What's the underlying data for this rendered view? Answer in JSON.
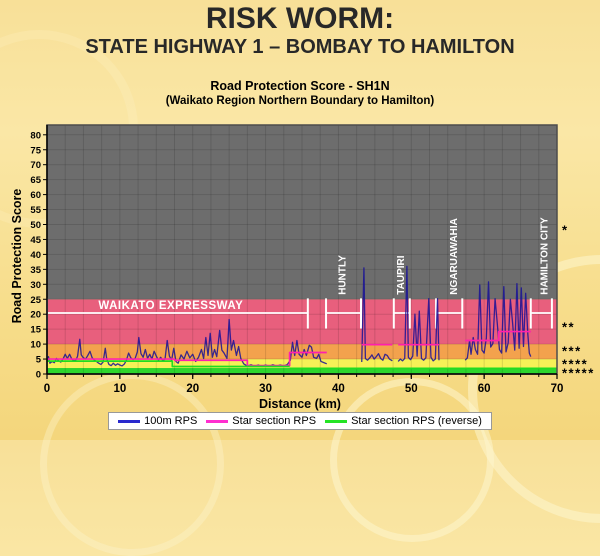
{
  "title": "RISK WORM:",
  "subtitle": "STATE HIGHWAY 1 – BOMBAY TO HAMILTON",
  "chart_title_line1": "Road Protection Score - SH1N",
  "chart_title_line2": "(Waikato Region Northern Boundary to Hamilton)",
  "xlabel": "Distance (km)",
  "ylabel": "Road Protection Score",
  "legend": {
    "items": [
      {
        "label": "100m RPS",
        "color": "#2a2ace"
      },
      {
        "label": "Star section RPS",
        "color": "#ff2fd0"
      },
      {
        "label": "Star section RPS (reverse)",
        "color": "#25e425"
      }
    ]
  },
  "colors": {
    "band_1star_grey": "#6d6d6d",
    "band_2star_pink": "#e85f7d",
    "band_3star_orange": "#f3a24d",
    "band_4star_yellow": "#f6f157",
    "band_5star_green": "#2dd62d",
    "worm_line": "rgba(24,16,150,0.85)",
    "star_section_line": "#ff1fae",
    "star_section_reverse_line": "#21dc21",
    "expressway_white": "#ffffff",
    "axis_black": "#000000"
  },
  "chart_data": {
    "type": "line",
    "xlabel": "Distance (km)",
    "ylabel": "Road Protection Score",
    "xlim": [
      0,
      70
    ],
    "ylim": [
      0,
      80
    ],
    "x_ticks": [
      0,
      10,
      20,
      30,
      40,
      50,
      60,
      70
    ],
    "y_ticks": [
      0,
      5,
      10,
      15,
      20,
      25,
      30,
      35,
      40,
      45,
      50,
      55,
      60,
      65,
      70,
      75,
      80
    ],
    "grid": {
      "x_step": 2.5,
      "y_step": 5
    },
    "bands": [
      {
        "stars": "*****",
        "from": 0,
        "to": 2,
        "color": "#2dd62d",
        "star_y": 1.2
      },
      {
        "stars": "****",
        "from": 2,
        "to": 5,
        "color": "#f6f157",
        "star_y": 4.2
      },
      {
        "stars": "***",
        "from": 5,
        "to": 10,
        "color": "#f3a24d",
        "star_y": 8.6
      },
      {
        "stars": "**",
        "from": 10,
        "to": 25,
        "color": "#e85f7d",
        "star_y": 16.5
      },
      {
        "stars": "*",
        "from": 25,
        "to": 83.3,
        "color": "#6d6d6d",
        "star_y": 49
      }
    ],
    "expressway": {
      "label": "WAIKATO EXPRESSWAY",
      "label_km": 17,
      "label_y": 21.8,
      "bar_y": 20.4,
      "cap_from_y": 15.2,
      "cap_to_y": 25.3,
      "segments": [
        [
          0,
          35.8
        ],
        [
          38.3,
          43.1
        ],
        [
          47.6,
          49.8
        ],
        [
          53.4,
          57.0
        ],
        [
          66.4,
          69.3
        ]
      ]
    },
    "towns": [
      {
        "name": "HUNTLY",
        "km": 40.5
      },
      {
        "name": "TAUPIRI",
        "km": 48.5
      },
      {
        "name": "NGARUAWAHIA",
        "km": 55.8
      },
      {
        "name": "HAMILTON CITY",
        "km": 68.2
      }
    ],
    "series": [
      {
        "name": "100m RPS",
        "color": "rgba(24,16,150,0.85)",
        "width": 1.3,
        "segments": [
          [
            [
              0,
              4.0
            ],
            [
              0.2,
              5.8
            ],
            [
              0.4,
              3.6
            ],
            [
              0.7,
              4.2
            ],
            [
              1.0,
              3.8
            ],
            [
              1.3,
              5.2
            ],
            [
              1.6,
              4.4
            ],
            [
              1.9,
              4.0
            ],
            [
              2.2,
              5.0
            ],
            [
              2.5,
              6.6
            ],
            [
              2.8,
              5.2
            ],
            [
              3.1,
              6.6
            ],
            [
              3.4,
              5.0
            ],
            [
              3.7,
              4.4
            ],
            [
              4.0,
              4.8
            ],
            [
              4.2,
              6.0
            ],
            [
              4.5,
              11.6
            ],
            [
              4.7,
              6.4
            ],
            [
              5.0,
              5.4
            ],
            [
              5.3,
              5.0
            ],
            [
              5.6,
              6.2
            ],
            [
              5.9,
              7.6
            ],
            [
              6.2,
              5.4
            ],
            [
              6.5,
              4.6
            ],
            [
              6.8,
              4.2
            ],
            [
              7.1,
              3.6
            ],
            [
              7.4,
              3.2
            ],
            [
              7.7,
              4.0
            ],
            [
              8.0,
              8.6
            ],
            [
              8.2,
              5.0
            ],
            [
              8.5,
              3.2
            ],
            [
              8.8,
              2.8
            ],
            [
              9.1,
              3.6
            ],
            [
              9.4,
              2.9
            ],
            [
              9.7,
              3.4
            ],
            [
              10.0,
              3.0
            ],
            [
              10.3,
              2.7
            ],
            [
              10.6,
              3.3
            ],
            [
              10.9,
              4.6
            ],
            [
              11.2,
              7.0
            ],
            [
              11.5,
              5.4
            ],
            [
              11.8,
              4.8
            ],
            [
              12.1,
              5.2
            ],
            [
              12.4,
              7.4
            ],
            [
              12.6,
              12.2
            ],
            [
              12.9,
              6.8
            ],
            [
              13.2,
              5.6
            ],
            [
              13.5,
              8.2
            ],
            [
              13.8,
              5.2
            ],
            [
              14.1,
              6.6
            ],
            [
              14.4,
              5.0
            ],
            [
              14.7,
              7.6
            ],
            [
              15.0,
              6.0
            ],
            [
              15.3,
              4.6
            ],
            [
              15.6,
              5.6
            ],
            [
              15.9,
              4.4
            ],
            [
              16.2,
              5.0
            ],
            [
              16.5,
              11.2
            ],
            [
              16.8,
              6.0
            ],
            [
              17.1,
              4.6
            ],
            [
              17.4,
              8.6
            ],
            [
              17.7,
              4.2
            ],
            [
              18.0,
              3.6
            ],
            [
              18.4,
              6.4
            ],
            [
              18.8,
              5.0
            ],
            [
              19.2,
              7.6
            ],
            [
              19.6,
              5.4
            ],
            [
              20.0,
              6.6
            ],
            [
              20.4,
              4.2
            ],
            [
              20.8,
              5.6
            ],
            [
              21.2,
              8.2
            ],
            [
              21.5,
              5.2
            ],
            [
              21.8,
              12.2
            ],
            [
              22.1,
              6.2
            ],
            [
              22.4,
              13.6
            ],
            [
              22.7,
              5.6
            ],
            [
              23.0,
              8.2
            ],
            [
              23.3,
              5.8
            ],
            [
              23.7,
              14.6
            ],
            [
              24.0,
              8.0
            ],
            [
              24.3,
              7.0
            ],
            [
              24.7,
              5.2
            ],
            [
              25.0,
              18.2
            ],
            [
              25.3,
              8.0
            ],
            [
              25.6,
              11.2
            ],
            [
              26.0,
              6.2
            ],
            [
              26.3,
              9.2
            ],
            [
              26.6,
              5.2
            ],
            [
              27.0,
              3.4
            ],
            [
              27.5,
              2.6
            ],
            [
              28.0,
              3.1
            ],
            [
              28.5,
              2.6
            ],
            [
              29.0,
              3.0
            ],
            [
              29.5,
              2.5
            ],
            [
              30.0,
              3.0
            ],
            [
              30.5,
              2.6
            ],
            [
              31.0,
              3.1
            ],
            [
              31.5,
              2.6
            ],
            [
              32.0,
              3.0
            ],
            [
              32.5,
              2.7
            ],
            [
              33.0,
              3.2
            ],
            [
              33.4,
              4.6
            ],
            [
              33.7,
              10.6
            ],
            [
              34.0,
              6.2
            ],
            [
              34.3,
              11.2
            ],
            [
              34.6,
              6.6
            ],
            [
              35.0,
              5.6
            ],
            [
              35.3,
              8.2
            ],
            [
              35.6,
              6.2
            ],
            [
              36.0,
              9.6
            ],
            [
              36.3,
              9.0
            ],
            [
              36.6,
              5.6
            ],
            [
              37.0,
              5.2
            ],
            [
              37.3,
              6.6
            ],
            [
              37.6,
              4.2
            ],
            [
              38.0,
              3.8
            ],
            [
              38.4,
              3.4
            ]
          ],
          [
            [
              43.2,
              4.0
            ],
            [
              43.5,
              35.5
            ],
            [
              43.7,
              5.2
            ],
            [
              44.0,
              4.6
            ],
            [
              44.3,
              5.4
            ],
            [
              44.6,
              6.4
            ],
            [
              44.9,
              5.0
            ],
            [
              45.2,
              5.8
            ],
            [
              45.5,
              6.8
            ],
            [
              45.8,
              5.2
            ],
            [
              46.1,
              4.6
            ],
            [
              46.4,
              6.6
            ],
            [
              46.7,
              6.2
            ],
            [
              47.0,
              5.0
            ],
            [
              47.4,
              4.4
            ]
          ],
          [
            [
              48.2,
              4.2
            ],
            [
              48.5,
              5.0
            ],
            [
              48.8,
              4.4
            ],
            [
              49.1,
              5.2
            ],
            [
              49.4,
              36.0
            ],
            [
              49.6,
              5.6
            ],
            [
              49.9,
              4.8
            ],
            [
              50.2,
              6.0
            ],
            [
              50.5,
              20.0
            ],
            [
              50.8,
              6.0
            ],
            [
              51.1,
              21.0
            ],
            [
              51.4,
              5.2
            ],
            [
              51.7,
              4.6
            ],
            [
              52.0,
              5.4
            ],
            [
              52.4,
              25.2
            ],
            [
              52.7,
              5.6
            ],
            [
              53.0,
              4.4
            ],
            [
              53.3,
              5.0
            ],
            [
              53.6,
              25.2
            ],
            [
              53.8,
              4.6
            ]
          ],
          [
            [
              57.4,
              4.6
            ],
            [
              57.7,
              5.4
            ],
            [
              58.0,
              11.2
            ],
            [
              58.2,
              6.6
            ],
            [
              58.5,
              12.2
            ],
            [
              58.8,
              8.2
            ],
            [
              59.1,
              6.6
            ],
            [
              59.4,
              29.8
            ],
            [
              59.7,
              8.0
            ],
            [
              60.0,
              7.0
            ],
            [
              60.3,
              12.0
            ],
            [
              60.6,
              30.8
            ],
            [
              60.9,
              9.0
            ],
            [
              61.2,
              10.2
            ],
            [
              61.5,
              25.2
            ],
            [
              61.8,
              17.0
            ],
            [
              62.1,
              8.2
            ],
            [
              62.4,
              7.0
            ],
            [
              62.7,
              29.2
            ],
            [
              63.0,
              7.4
            ],
            [
              63.3,
              10.4
            ],
            [
              63.6,
              25.0
            ],
            [
              63.9,
              17.2
            ],
            [
              64.2,
              8.0
            ],
            [
              64.5,
              30.2
            ],
            [
              64.8,
              8.6
            ],
            [
              65.1,
              28.8
            ],
            [
              65.4,
              9.2
            ],
            [
              65.7,
              27.0
            ],
            [
              66.0,
              13.2
            ],
            [
              66.2,
              7.0
            ],
            [
              66.4,
              5.8
            ]
          ]
        ]
      },
      {
        "name": "Star section RPS",
        "color": "#ff1fae",
        "width": 1.7,
        "segments": [
          [
            [
              0,
              5.0
            ],
            [
              17.5,
              5.0
            ],
            [
              17.5,
              4.6
            ],
            [
              27.5,
              4.6
            ],
            [
              27.5,
              2.8
            ],
            [
              33.3,
              2.8
            ],
            [
              33.3,
              7.2
            ],
            [
              38.4,
              7.2
            ]
          ],
          [
            [
              43.2,
              9.8
            ],
            [
              47.4,
              9.8
            ]
          ],
          [
            [
              48.2,
              9.8
            ],
            [
              53.8,
              9.8
            ]
          ],
          [
            [
              57.4,
              11.2
            ],
            [
              62.0,
              11.2
            ],
            [
              62.0,
              14.2
            ],
            [
              66.4,
              14.2
            ]
          ]
        ]
      },
      {
        "name": "Star section RPS (reverse)",
        "color": "#21dc21",
        "width": 1.7,
        "segments": [
          [
            [
              0,
              4.3
            ],
            [
              17.2,
              4.3
            ],
            [
              17.2,
              2.5
            ],
            [
              33.3,
              2.5
            ]
          ],
          [
            [
              33.3,
              1.9
            ],
            [
              70,
              1.9
            ]
          ]
        ]
      }
    ]
  }
}
